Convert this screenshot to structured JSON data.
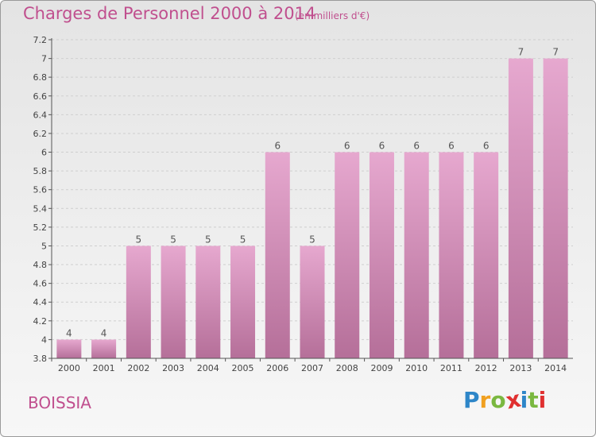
{
  "title": "Charges de Personnel 2000 à 2014",
  "subtitle": "(en milliers d'€)",
  "commune": "BOISSIA",
  "brand": {
    "letters": [
      "P",
      "r",
      "o",
      "x",
      "i",
      "t",
      "i"
    ],
    "colors": [
      "#2e86c8",
      "#f0a020",
      "#7ab840",
      "#e03030",
      "#2e86c8",
      "#7ab840",
      "#e03030"
    ]
  },
  "colors": {
    "bar": "#d98ebc",
    "text": "#c04f8e",
    "grid": "#cfcfcf"
  },
  "chart_data": {
    "type": "bar",
    "title": "Charges de Personnel 2000 à 2014",
    "subtitle": "(en milliers d'€)",
    "categories": [
      "2000",
      "2001",
      "2002",
      "2003",
      "2004",
      "2005",
      "2006",
      "2007",
      "2008",
      "2009",
      "2010",
      "2011",
      "2012",
      "2013",
      "2014"
    ],
    "values": [
      4,
      4,
      5,
      5,
      5,
      5,
      6,
      5,
      6,
      6,
      6,
      6,
      6,
      7,
      7
    ],
    "labels": [
      "4",
      "4",
      "5",
      "5",
      "5",
      "5",
      "6",
      "5",
      "6",
      "6",
      "6",
      "6",
      "6",
      "7",
      "7"
    ],
    "yticks": [
      "3.8",
      "4",
      "4.2",
      "4.4",
      "4.6",
      "4.8",
      "5",
      "5.2",
      "5.4",
      "5.6",
      "5.8",
      "6",
      "6.2",
      "6.4",
      "6.6",
      "6.8",
      "7",
      "7.2"
    ],
    "ylim": [
      3.8,
      7.2
    ],
    "grid": true,
    "xlabel": "",
    "ylabel": ""
  }
}
